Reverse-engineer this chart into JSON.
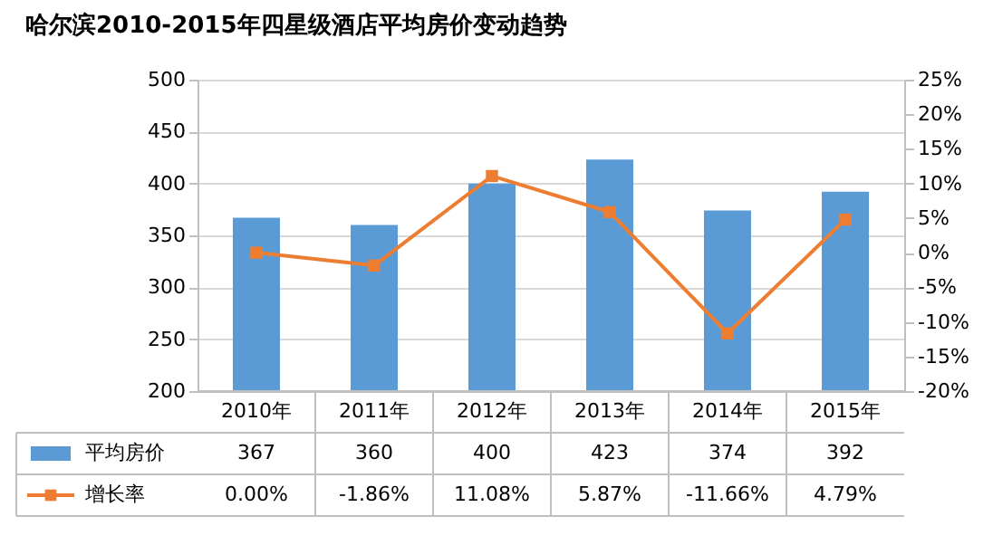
{
  "chart_data": {
    "type": "bar",
    "title": "哈尔滨2010-2015年四星级酒店平均房价变动趋势",
    "categories": [
      "2010年",
      "2011年",
      "2012年",
      "2013年",
      "2014年",
      "2015年"
    ],
    "series": [
      {
        "name": "平均房价",
        "color": "#5b9bd5",
        "values": [
          367,
          360,
          400,
          423,
          374,
          392
        ],
        "value_labels": [
          "367",
          "360",
          "400",
          "423",
          "374",
          "392"
        ]
      },
      {
        "name": "增长率",
        "type": "line",
        "axis": "y2",
        "color": "#ed7d31",
        "values": [
          0.0,
          -1.86,
          11.08,
          5.87,
          -11.66,
          4.79
        ],
        "value_labels": [
          "0.00%",
          "-1.86%",
          "11.08%",
          "5.87%",
          "-11.66%",
          "4.79%"
        ]
      }
    ],
    "ylim": [
      200,
      500
    ],
    "yticks": [
      200,
      250,
      300,
      350,
      400,
      450,
      500
    ],
    "y2lim": [
      -20,
      25
    ],
    "y2ticks": [
      {
        "value": -20,
        "label": "-20%"
      },
      {
        "value": -15,
        "label": "-15%"
      },
      {
        "value": -10,
        "label": "-10%"
      },
      {
        "value": -5,
        "label": "-5%"
      },
      {
        "value": 0,
        "label": "0%"
      },
      {
        "value": 5,
        "label": "5%"
      },
      {
        "value": 10,
        "label": "10%"
      },
      {
        "value": 15,
        "label": "15%"
      },
      {
        "value": 20,
        "label": "20%"
      },
      {
        "value": 25,
        "label": "25%"
      }
    ],
    "grid": "y",
    "legend": "bottom",
    "marker": "square",
    "line_style": "solid"
  }
}
